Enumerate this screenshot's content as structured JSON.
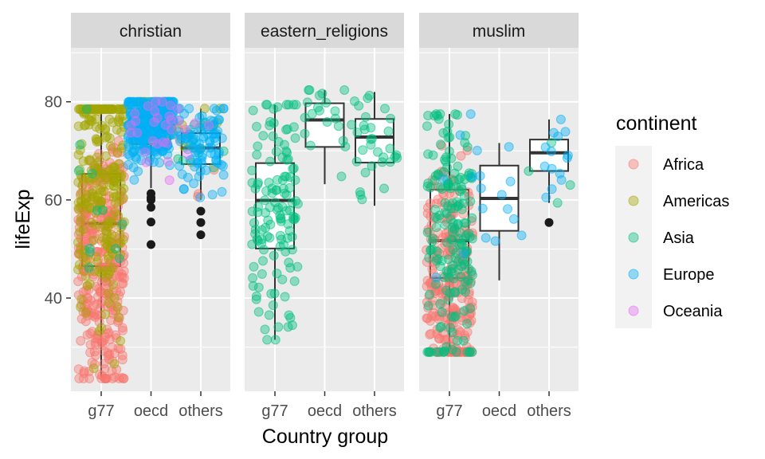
{
  "chart_data": {
    "type": "boxplot",
    "xlabel": "Country group",
    "ylabel": "lifeExp",
    "ylim": [
      21,
      91
    ],
    "yticks": [
      40,
      60,
      80
    ],
    "categories": [
      "g77",
      "oecd",
      "others"
    ],
    "legend": {
      "title": "continent",
      "placement": "right",
      "entries": [
        {
          "name": "Africa",
          "color": "#F8766D"
        },
        {
          "name": "Americas",
          "color": "#A3A500"
        },
        {
          "name": "Asia",
          "color": "#00BF7D"
        },
        {
          "name": "Europe",
          "color": "#00B0F6"
        },
        {
          "name": "Oceania",
          "color": "#E76BF3"
        }
      ]
    },
    "panels": [
      {
        "label": "christian",
        "boxes": [
          {
            "group": "g77",
            "lower_whisker": 23.6,
            "q1": 46.5,
            "median": 55.2,
            "q3": 65.3,
            "upper_whisker": 78.5,
            "outliers": []
          },
          {
            "group": "oecd",
            "lower_whisker": 62.4,
            "q1": 71.4,
            "median": 74.4,
            "q3": 76.9,
            "upper_whisker": 80.0,
            "outliers": [
              61.3,
              60.5,
              60.0,
              58.5,
              55.5,
              50.9
            ]
          },
          {
            "group": "others",
            "lower_whisker": 60.0,
            "q1": 67.3,
            "median": 70.6,
            "q3": 73.6,
            "upper_whisker": 78.6,
            "outliers": [
              57.7,
              55.4,
              52.9
            ]
          }
        ]
      },
      {
        "label": "eastern_religions",
        "boxes": [
          {
            "group": "g77",
            "lower_whisker": 31.5,
            "q1": 50.1,
            "median": 59.9,
            "q3": 67.5,
            "upper_whisker": 79.4,
            "outliers": []
          },
          {
            "group": "oecd",
            "lower_whisker": 63.2,
            "q1": 70.8,
            "median": 76.3,
            "q3": 79.7,
            "upper_whisker": 82.4,
            "outliers": []
          },
          {
            "group": "others",
            "lower_whisker": 58.8,
            "q1": 67.6,
            "median": 72.8,
            "q3": 76.5,
            "upper_whisker": 82.0,
            "outliers": []
          }
        ]
      },
      {
        "label": "muslim",
        "boxes": [
          {
            "group": "g77",
            "lower_whisker": 29.0,
            "q1": 44.1,
            "median": 51.7,
            "q3": 62.1,
            "upper_whisker": 77.5,
            "outliers": []
          },
          {
            "group": "oecd",
            "lower_whisker": 43.6,
            "q1": 53.7,
            "median": 60.3,
            "q3": 67.0,
            "upper_whisker": 71.6,
            "outliers": []
          },
          {
            "group": "others",
            "lower_whisker": 59.4,
            "q1": 65.9,
            "median": 69.6,
            "q3": 72.3,
            "upper_whisker": 76.4,
            "outliers": [
              55.4
            ]
          }
        ]
      }
    ],
    "jitter_points": {
      "christian": {
        "g77": {
          "Africa": 340,
          "Americas": 250,
          "Asia": 12,
          "Europe": 0,
          "Oceania": 0
        },
        "oecd": {
          "Africa": 0,
          "Americas": 40,
          "Asia": 8,
          "Europe": 300,
          "Oceania": 24
        },
        "others": {
          "Africa": 6,
          "Americas": 12,
          "Asia": 8,
          "Europe": 90,
          "Oceania": 6
        }
      },
      "eastern_religions": {
        "g77": {
          "Africa": 0,
          "Americas": 0,
          "Asia": 130,
          "Europe": 0,
          "Oceania": 0
        },
        "oecd": {
          "Africa": 0,
          "Americas": 0,
          "Asia": 20,
          "Europe": 0,
          "Oceania": 0
        },
        "others": {
          "Africa": 0,
          "Americas": 0,
          "Asia": 32,
          "Europe": 0,
          "Oceania": 0
        }
      },
      "muslim": {
        "g77": {
          "Africa": 260,
          "Americas": 0,
          "Asia": 180,
          "Europe": 6,
          "Oceania": 0
        },
        "oecd": {
          "Africa": 0,
          "Americas": 0,
          "Asia": 0,
          "Europe": 12,
          "Oceania": 0
        },
        "others": {
          "Africa": 0,
          "Americas": 0,
          "Asia": 4,
          "Europe": 14,
          "Oceania": 0
        }
      }
    },
    "style": {
      "panel_background": "#EBEBEB",
      "grid_color": "#FFFFFF",
      "strip_background": "#D9D9D9",
      "point_alpha": 0.4,
      "legend_key_background": "#F2F2F2"
    }
  }
}
